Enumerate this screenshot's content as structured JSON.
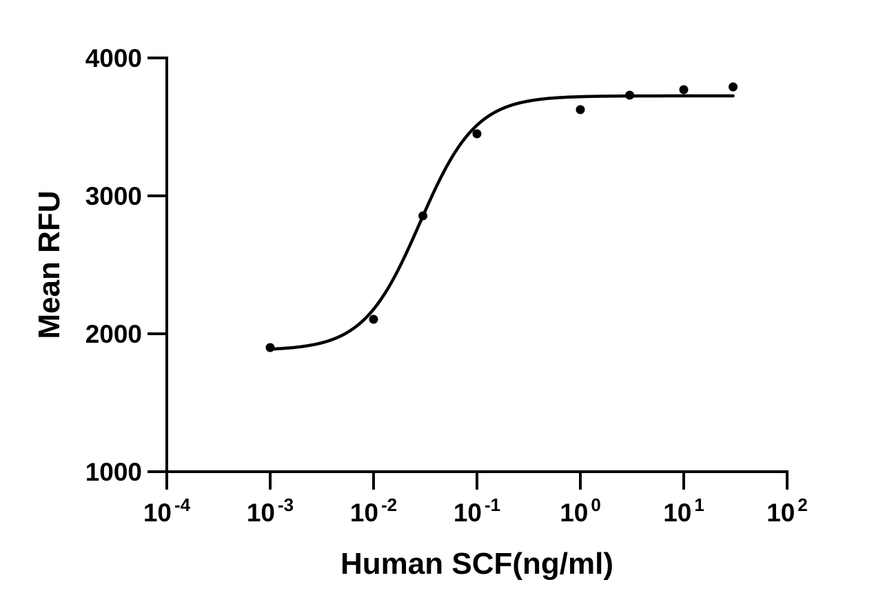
{
  "chart_data": {
    "type": "scatter",
    "title": "",
    "xlabel": "Human SCF(ng/ml)",
    "ylabel": "Mean RFU",
    "x_scale": "log10",
    "xlim": [
      0.0001,
      100
    ],
    "ylim": [
      1000,
      4000
    ],
    "x_ticks": [
      {
        "base": "10",
        "exp": "-4"
      },
      {
        "base": "10",
        "exp": "-3"
      },
      {
        "base": "10",
        "exp": "-2"
      },
      {
        "base": "10",
        "exp": "-1"
      },
      {
        "base": "10",
        "exp": "0"
      },
      {
        "base": "10",
        "exp": "1"
      },
      {
        "base": "10",
        "exp": "2"
      }
    ],
    "y_ticks": [
      "1000",
      "2000",
      "3000",
      "4000"
    ],
    "grid": false,
    "series": [
      {
        "x": [
          0.001,
          0.01,
          0.03,
          0.1,
          1,
          3,
          10,
          30
        ],
        "y": [
          1900,
          2105,
          2855,
          3450,
          3625,
          3730,
          3770,
          3790
        ]
      }
    ],
    "fit": {
      "model": "4PL",
      "bottom": 1880,
      "top": 3725,
      "ec50": 0.028,
      "hill": 1.6,
      "x_range": [
        0.001,
        30
      ]
    },
    "colors": {
      "axis": "#000000",
      "points": "#000000",
      "curve": "#000000"
    }
  }
}
